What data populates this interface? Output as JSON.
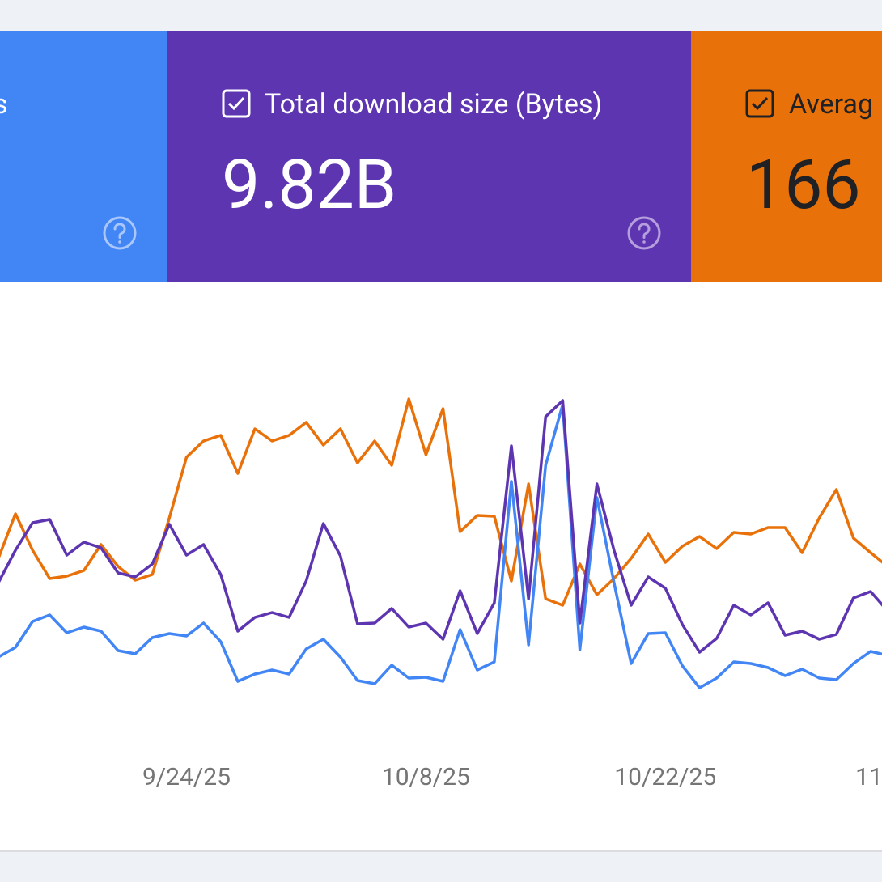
{
  "cards": [
    {
      "label": "s"
    },
    {
      "label": "Total download size (Bytes)",
      "value": "9.82B"
    },
    {
      "label": "Averag",
      "value": "166"
    }
  ],
  "chart_data": {
    "type": "line",
    "x": [
      0,
      1,
      2,
      3,
      4,
      5,
      6,
      7,
      8,
      9,
      10,
      11,
      12,
      13,
      14,
      15,
      16,
      17,
      18,
      19,
      20,
      21,
      22,
      23,
      24,
      25,
      26,
      27,
      28,
      29,
      30,
      31,
      32,
      33,
      34,
      35,
      36,
      37,
      38,
      39,
      40,
      41,
      42,
      43,
      44,
      45,
      46,
      47,
      48,
      49,
      50,
      51,
      52
    ],
    "xlim": [
      0,
      52
    ],
    "xticks": [
      {
        "value": 11,
        "label": "9/24/25"
      },
      {
        "value": 25,
        "label": "10/8/25"
      },
      {
        "value": 39,
        "label": "10/22/25"
      },
      {
        "value": 53,
        "label": "11"
      }
    ],
    "ylim": [
      0,
      500
    ],
    "series": [
      {
        "color": "#e8710a",
        "values": [
          210,
          265,
          220,
          185,
          188,
          195,
          227,
          200,
          183,
          190,
          260,
          335,
          355,
          362,
          315,
          370,
          355,
          362,
          378,
          350,
          370,
          328,
          355,
          325,
          407,
          338,
          395,
          243,
          263,
          262,
          182,
          302,
          160,
          152,
          203,
          165,
          185,
          210,
          240,
          205,
          225,
          237,
          222,
          242,
          240,
          248,
          248,
          217,
          260,
          295,
          235,
          217,
          200
        ]
      },
      {
        "color": "#4285f4",
        "values": [
          88,
          100,
          132,
          140,
          118,
          125,
          120,
          96,
          92,
          112,
          117,
          114,
          130,
          107,
          58,
          67,
          72,
          67,
          98,
          110,
          88,
          59,
          55,
          78,
          62,
          63,
          58,
          122,
          72,
          82,
          305,
          103,
          325,
          400,
          97,
          285,
          180,
          80,
          117,
          118,
          77,
          50,
          62,
          82,
          80,
          75,
          65,
          73,
          62,
          60,
          80,
          95,
          90
        ]
      },
      {
        "color": "#5e35b1",
        "values": [
          180,
          220,
          254,
          258,
          214,
          230,
          223,
          192,
          187,
          203,
          252,
          214,
          227,
          190,
          120,
          137,
          143,
          137,
          182,
          253,
          213,
          129,
          130,
          148,
          125,
          130,
          110,
          170,
          117,
          155,
          349,
          160,
          385,
          405,
          130,
          302,
          220,
          152,
          187,
          173,
          128,
          94,
          111,
          152,
          140,
          155,
          115,
          120,
          110,
          116,
          161,
          169,
          145
        ]
      }
    ]
  }
}
